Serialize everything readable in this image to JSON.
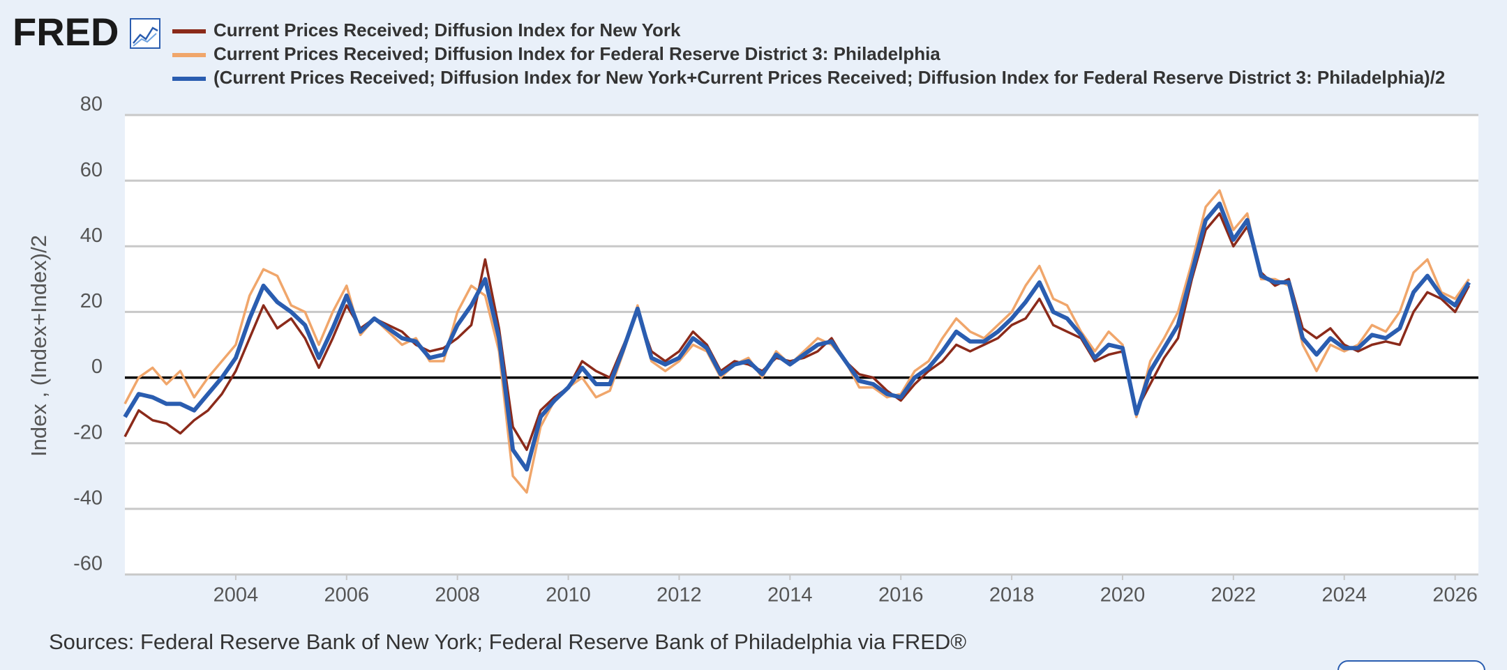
{
  "logo": "FRED",
  "chart_data": {
    "type": "line",
    "y_label": "Index , (Index+Index)/2",
    "source": "Sources: Federal Reserve Bank of New York; Federal Reserve Bank of Philadelphia via FRED®",
    "x": [
      2002,
      2002.25,
      2002.5,
      2002.75,
      2003,
      2003.25,
      2003.5,
      2003.75,
      2004,
      2004.25,
      2004.5,
      2004.75,
      2005,
      2005.25,
      2005.5,
      2005.75,
      2006,
      2006.25,
      2006.5,
      2006.75,
      2007,
      2007.25,
      2007.5,
      2007.75,
      2008,
      2008.25,
      2008.5,
      2008.75,
      2009,
      2009.25,
      2009.5,
      2009.75,
      2010,
      2010.25,
      2010.5,
      2010.75,
      2011,
      2011.25,
      2011.5,
      2011.75,
      2012,
      2012.25,
      2012.5,
      2012.75,
      2013,
      2013.25,
      2013.5,
      2013.75,
      2014,
      2014.25,
      2014.5,
      2014.75,
      2015,
      2015.25,
      2015.5,
      2015.75,
      2016,
      2016.25,
      2016.5,
      2016.75,
      2017,
      2017.25,
      2017.5,
      2017.75,
      2018,
      2018.25,
      2018.5,
      2018.75,
      2019,
      2019.25,
      2019.5,
      2019.75,
      2020,
      2020.25,
      2020.5,
      2020.75,
      2021,
      2021.25,
      2021.5,
      2021.75,
      2022,
      2022.25,
      2022.5,
      2022.75,
      2023,
      2023.25,
      2023.5,
      2023.75,
      2024,
      2024.25,
      2024.5,
      2024.75,
      2025,
      2025.25,
      2025.5,
      2025.75,
      2026,
      2026.25
    ],
    "series": [
      {
        "name": "Current Prices Received; Diffusion Index for New York",
        "color": "#8b2a1a",
        "width": 3.5,
        "values": [
          -18,
          -10,
          -13,
          -14,
          -17,
          -13,
          -10,
          -5,
          2,
          12,
          22,
          15,
          18,
          12,
          3,
          12,
          22,
          15,
          18,
          16,
          14,
          10,
          8,
          9,
          12,
          16,
          36,
          15,
          -15,
          -22,
          -10,
          -6,
          -3,
          5,
          2,
          0,
          10,
          20,
          8,
          5,
          8,
          14,
          10,
          2,
          5,
          4,
          2,
          6,
          5,
          6,
          8,
          12,
          5,
          1,
          0,
          -4,
          -7,
          -2,
          2,
          5,
          10,
          8,
          10,
          12,
          16,
          18,
          24,
          16,
          14,
          12,
          5,
          7,
          8,
          -10,
          -2,
          6,
          12,
          30,
          45,
          50,
          40,
          46,
          32,
          28,
          30,
          15,
          12,
          15,
          10,
          8,
          10,
          11,
          10,
          20,
          26,
          24,
          20,
          28
        ]
      },
      {
        "name": "Current Prices Received; Diffusion Index for Federal Reserve District 3: Philadelphia",
        "color": "#f0a66b",
        "width": 3.5,
        "values": [
          -8,
          0,
          3,
          -2,
          2,
          -6,
          0,
          5,
          10,
          25,
          33,
          31,
          22,
          20,
          10,
          20,
          28,
          13,
          18,
          14,
          10,
          12,
          5,
          5,
          20,
          28,
          25,
          8,
          -30,
          -35,
          -15,
          -7,
          -3,
          0,
          -6,
          -4,
          8,
          22,
          5,
          2,
          5,
          10,
          8,
          0,
          4,
          6,
          0,
          8,
          4,
          8,
          12,
          10,
          5,
          -3,
          -3,
          -6,
          -5,
          2,
          5,
          12,
          18,
          14,
          12,
          16,
          20,
          28,
          34,
          24,
          22,
          14,
          8,
          14,
          10,
          -12,
          5,
          12,
          20,
          35,
          52,
          57,
          45,
          50,
          30,
          30,
          28,
          10,
          2,
          10,
          8,
          10,
          16,
          14,
          20,
          32,
          36,
          26,
          24,
          30
        ]
      },
      {
        "name": "(Current Prices Received; Diffusion Index for New York+Current Prices Received; Diffusion Index for Federal Reserve District 3: Philadelphia)/2",
        "color": "#2a5db0",
        "width": 6,
        "values": [
          -12,
          -5,
          -6,
          -8,
          -8,
          -10,
          -5,
          0,
          6,
          18,
          28,
          23,
          20,
          16,
          6,
          15,
          25,
          14,
          18,
          15,
          12,
          11,
          6,
          7,
          16,
          22,
          30,
          12,
          -22,
          -28,
          -12,
          -7,
          -3,
          3,
          -2,
          -2,
          9,
          21,
          6,
          4,
          6,
          12,
          9,
          1,
          4,
          5,
          1,
          7,
          4,
          7,
          10,
          11,
          5,
          -1,
          -2,
          -5,
          -6,
          0,
          3,
          8,
          14,
          11,
          11,
          14,
          18,
          23,
          29,
          20,
          18,
          13,
          6,
          10,
          9,
          -11,
          2,
          9,
          16,
          32,
          48,
          53,
          42,
          48,
          31,
          29,
          29,
          12,
          7,
          12,
          9,
          9,
          13,
          12,
          15,
          26,
          31,
          25,
          22,
          29
        ]
      }
    ],
    "xlim": [
      2002,
      2026.42
    ],
    "xticks": [
      2004,
      2006,
      2008,
      2010,
      2012,
      2014,
      2016,
      2018,
      2020,
      2022,
      2024,
      2026
    ],
    "ylim": [
      -60,
      80
    ],
    "yticks": [
      -60,
      -40,
      -20,
      0,
      20,
      40,
      60,
      80
    ],
    "grid": true,
    "zero_line": true
  }
}
